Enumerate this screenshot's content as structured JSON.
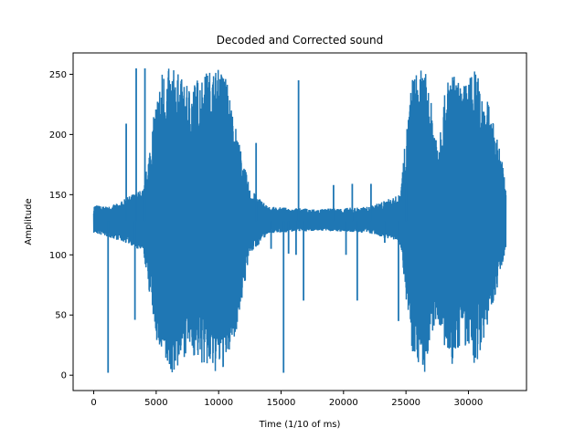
{
  "chart_data": {
    "type": "line",
    "title": "Decoded and Corrected sound",
    "xlabel": "Time (1/10 of ms)",
    "ylabel": "Amplitude",
    "xlim": [
      -1650,
      34650
    ],
    "ylim": [
      -12.75,
      267.75
    ],
    "xticks": [
      0,
      5000,
      10000,
      15000,
      20000,
      25000,
      30000
    ],
    "yticks": [
      0,
      50,
      100,
      150,
      200,
      250
    ],
    "grid": false,
    "legend": "none",
    "series": [
      {
        "color": "#1f77b4",
        "x_start": 0,
        "x_end": 33000,
        "baseline": 128,
        "envelope": [
          {
            "x": 0,
            "min": 118,
            "max": 142
          },
          {
            "x": 1000,
            "min": 115,
            "max": 140
          },
          {
            "x": 2000,
            "min": 112,
            "max": 143
          },
          {
            "x": 3000,
            "min": 108,
            "max": 150
          },
          {
            "x": 4000,
            "min": 100,
            "max": 155
          },
          {
            "x": 5000,
            "min": 30,
            "max": 230
          },
          {
            "x": 5500,
            "min": 5,
            "max": 255
          },
          {
            "x": 6500,
            "min": 0,
            "max": 255
          },
          {
            "x": 7500,
            "min": 20,
            "max": 240
          },
          {
            "x": 8500,
            "min": 10,
            "max": 250
          },
          {
            "x": 9500,
            "min": 0,
            "max": 255
          },
          {
            "x": 10500,
            "min": 5,
            "max": 255
          },
          {
            "x": 11500,
            "min": 40,
            "max": 200
          },
          {
            "x": 12500,
            "min": 100,
            "max": 155
          },
          {
            "x": 14000,
            "min": 118,
            "max": 140
          },
          {
            "x": 18000,
            "min": 120,
            "max": 138
          },
          {
            "x": 22000,
            "min": 118,
            "max": 140
          },
          {
            "x": 24500,
            "min": 110,
            "max": 150
          },
          {
            "x": 25500,
            "min": 20,
            "max": 250
          },
          {
            "x": 26500,
            "min": 0,
            "max": 255
          },
          {
            "x": 27500,
            "min": 50,
            "max": 200
          },
          {
            "x": 28500,
            "min": 0,
            "max": 255
          },
          {
            "x": 29500,
            "min": 30,
            "max": 240
          },
          {
            "x": 30500,
            "min": 5,
            "max": 255
          },
          {
            "x": 31500,
            "min": 40,
            "max": 230
          },
          {
            "x": 32500,
            "min": 80,
            "max": 190
          },
          {
            "x": 33000,
            "min": 105,
            "max": 160
          }
        ],
        "spikes": [
          {
            "x": 1150,
            "y": 2
          },
          {
            "x": 2600,
            "y": 209
          },
          {
            "x": 3300,
            "y": 46
          },
          {
            "x": 3400,
            "y": 255
          },
          {
            "x": 4100,
            "y": 255
          },
          {
            "x": 13000,
            "y": 193
          },
          {
            "x": 14200,
            "y": 105
          },
          {
            "x": 15200,
            "y": 2
          },
          {
            "x": 15600,
            "y": 101
          },
          {
            "x": 16200,
            "y": 100
          },
          {
            "x": 16400,
            "y": 245
          },
          {
            "x": 16800,
            "y": 62
          },
          {
            "x": 19200,
            "y": 158
          },
          {
            "x": 20200,
            "y": 100
          },
          {
            "x": 20700,
            "y": 159
          },
          {
            "x": 21100,
            "y": 62
          },
          {
            "x": 22200,
            "y": 159
          },
          {
            "x": 23300,
            "y": 110
          },
          {
            "x": 24400,
            "y": 45
          },
          {
            "x": 25000,
            "y": 160
          }
        ]
      }
    ]
  }
}
